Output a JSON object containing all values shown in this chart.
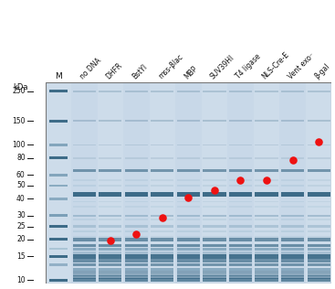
{
  "fig_width": 3.67,
  "fig_height": 3.16,
  "dpi": 100,
  "gel_bg": "#c8d8e8",
  "gel_light": "#dce8f2",
  "gel_very_light": "#eaf2f8",
  "band_dark": "#1a5070",
  "band_med": "#3a7090",
  "band_light": "#6a9ab0",
  "outer_bg": "#ffffff",
  "kda_label": "kDa",
  "m_label": "M",
  "lane_labels": [
    "no DNA",
    "DHFR",
    "BstYI",
    "mss-βlac",
    "MBP",
    "SUV39HI",
    "T4 ligase",
    "NLS-Cre-E",
    "Vent exo⁻",
    "β-gal"
  ],
  "mw_labels": [
    "250",
    "150",
    "100",
    "80",
    "60",
    "50",
    "40",
    "30",
    "25",
    "20",
    "15",
    "10"
  ],
  "mw_values": [
    250,
    150,
    100,
    80,
    60,
    50,
    40,
    30,
    25,
    20,
    15,
    10
  ],
  "red_dots": [
    {
      "lane": 2,
      "mw": 19.5
    },
    {
      "lane": 3,
      "mw": 22
    },
    {
      "lane": 4,
      "mw": 29
    },
    {
      "lane": 5,
      "mw": 41
    },
    {
      "lane": 6,
      "mw": 46
    },
    {
      "lane": 7,
      "mw": 55
    },
    {
      "lane": 8,
      "mw": 55
    },
    {
      "lane": 9,
      "mw": 77
    },
    {
      "lane": 10,
      "mw": 105
    }
  ],
  "gel_border_color": "#777777",
  "text_color": "#111111",
  "dot_color": "#ee1111",
  "dot_size": 38
}
